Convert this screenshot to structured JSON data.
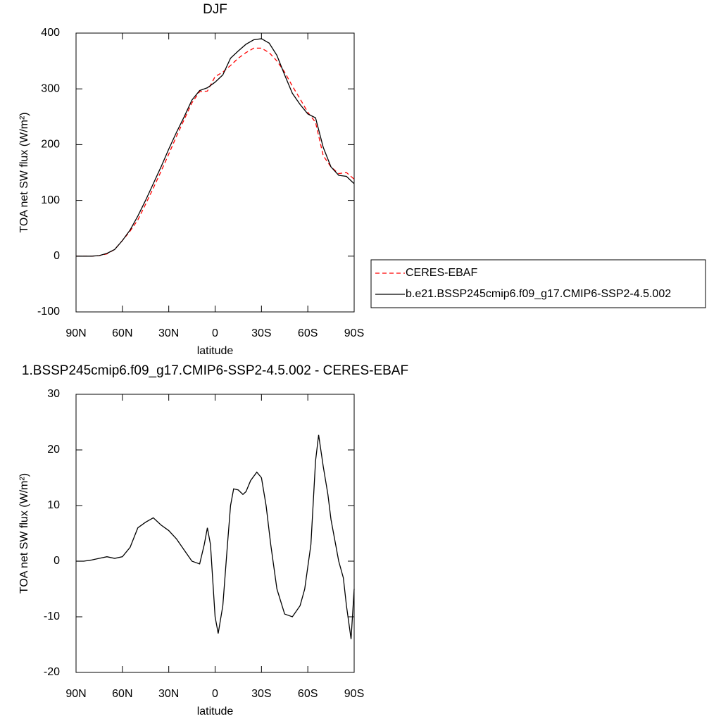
{
  "chart_data": [
    {
      "type": "line",
      "title": "DJF",
      "xlabel": "latitude",
      "ylabel": "TOA net SW flux (W/m²)",
      "x": [
        90,
        85,
        80,
        75,
        70,
        65,
        60,
        55,
        50,
        45,
        40,
        35,
        30,
        25,
        20,
        15,
        10,
        5,
        0,
        -5,
        -10,
        -15,
        -20,
        -25,
        -30,
        -35,
        -40,
        -45,
        -50,
        -55,
        -60,
        -65,
        -70,
        -75,
        -80,
        -85,
        -90
      ],
      "series": [
        {
          "name": "CERES-EBAF",
          "color": "#ff0000",
          "line_style": "dashed",
          "values": [
            0,
            0,
            0,
            1,
            4,
            12,
            28,
            45,
            65,
            93,
            122,
            152,
            183,
            215,
            245,
            275,
            295,
            296,
            322,
            330,
            342,
            355,
            365,
            373,
            373,
            365,
            350,
            330,
            305,
            282,
            258,
            240,
            180,
            160,
            148,
            150,
            138
          ]
        },
        {
          "name": "b.e21.BSSP245cmip6.f09_g17.CMIP6-SSP2-4.5.002",
          "color": "#000000",
          "line_style": "solid",
          "values": [
            0,
            0,
            0,
            1,
            5,
            12,
            28,
            47,
            72,
            100,
            130,
            160,
            192,
            222,
            250,
            280,
            297,
            302,
            312,
            325,
            355,
            368,
            380,
            388,
            390,
            382,
            360,
            325,
            292,
            272,
            255,
            248,
            195,
            160,
            145,
            143,
            130
          ]
        }
      ],
      "xlim": [
        90,
        -90
      ],
      "xticks": [
        {
          "value": 90,
          "label": "90N"
        },
        {
          "value": 60,
          "label": "60N"
        },
        {
          "value": 30,
          "label": "30N"
        },
        0,
        {
          "value": -30,
          "label": "30S"
        },
        {
          "value": -60,
          "label": "60S"
        },
        {
          "value": -90,
          "label": "90S"
        }
      ],
      "ylim": [
        -100,
        400
      ],
      "yticks": [
        -100,
        0,
        100,
        200,
        300,
        400
      ],
      "legend": "right"
    },
    {
      "type": "line",
      "title": "1.BSSP245cmip6.f09_g17.CMIP6-SSP2-4.5.002 - CERES-EBAF",
      "xlabel": "latitude",
      "ylabel": "TOA net SW flux (W/m²)",
      "x": [
        90,
        85,
        80,
        75,
        70,
        65,
        60,
        55,
        50,
        45,
        40,
        35,
        30,
        25,
        20,
        15,
        10,
        7,
        5,
        3,
        0,
        -2,
        -5,
        -8,
        -10,
        -12,
        -15,
        -18,
        -20,
        -23,
        -27,
        -30,
        -33,
        -36,
        -40,
        -45,
        -50,
        -55,
        -58,
        -62,
        -65,
        -67,
        -70,
        -73,
        -75,
        -78,
        -80,
        -83,
        -85,
        -88,
        -90
      ],
      "series": [
        {
          "color": "#000000",
          "line_style": "solid",
          "values": [
            0,
            0,
            0.2,
            0.5,
            0.8,
            0.5,
            0.8,
            2.5,
            6,
            7,
            7.8,
            6.5,
            5.5,
            4,
            2,
            0,
            -0.5,
            3,
            6,
            3,
            -10,
            -13,
            -8,
            3,
            10,
            13,
            12.8,
            12,
            12.5,
            14.5,
            16,
            15,
            10,
            3,
            -5,
            -9.5,
            -10,
            -8,
            -5,
            3,
            18,
            22.7,
            17,
            12,
            7.5,
            3,
            0,
            -3,
            -8,
            -14,
            -5
          ]
        }
      ],
      "xlim": [
        90,
        -90
      ],
      "xticks": [
        {
          "value": 90,
          "label": "90N"
        },
        {
          "value": 60,
          "label": "60N"
        },
        {
          "value": 30,
          "label": "30N"
        },
        0,
        {
          "value": -30,
          "label": "30S"
        },
        {
          "value": -60,
          "label": "60S"
        },
        {
          "value": -90,
          "label": "90S"
        }
      ],
      "ylim": [
        -20,
        30
      ],
      "yticks": [
        -20,
        -10,
        0,
        10,
        20,
        30
      ]
    }
  ]
}
